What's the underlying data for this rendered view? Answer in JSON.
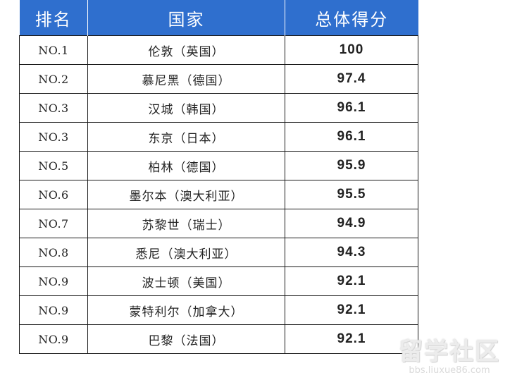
{
  "table": {
    "headers": [
      "排名",
      "国家",
      "总体得分"
    ],
    "rows": [
      {
        "rank": "NO.1",
        "city": "伦敦（英国）",
        "score": "100"
      },
      {
        "rank": "NO.2",
        "city": "慕尼黑（德国）",
        "score": "97.4"
      },
      {
        "rank": "NO.3",
        "city": "汉城（韩国）",
        "score": "96.1"
      },
      {
        "rank": "NO.3",
        "city": "东京（日本）",
        "score": "96.1"
      },
      {
        "rank": "NO.5",
        "city": "柏林（德国）",
        "score": "95.9"
      },
      {
        "rank": "NO.6",
        "city": "墨尔本（澳大利亚）",
        "score": "95.5"
      },
      {
        "rank": "NO.7",
        "city": "苏黎世（瑞士）",
        "score": "94.9"
      },
      {
        "rank": "NO.8",
        "city": "悉尼（澳大利亚）",
        "score": "94.3"
      },
      {
        "rank": "NO.9",
        "city": "波士顿（美国）",
        "score": "92.1"
      },
      {
        "rank": "NO.9",
        "city": "蒙特利尔（加拿大）",
        "score": "92.1"
      },
      {
        "rank": "NO.9",
        "city": "巴黎（法国）",
        "score": "92.1"
      }
    ]
  },
  "watermark": {
    "main": "留学社区",
    "url": "bbs.liuxue86.com"
  },
  "colors": {
    "header_bg": "#2f6fce",
    "header_text": "#ffffff",
    "border": "#1a1a1a"
  }
}
